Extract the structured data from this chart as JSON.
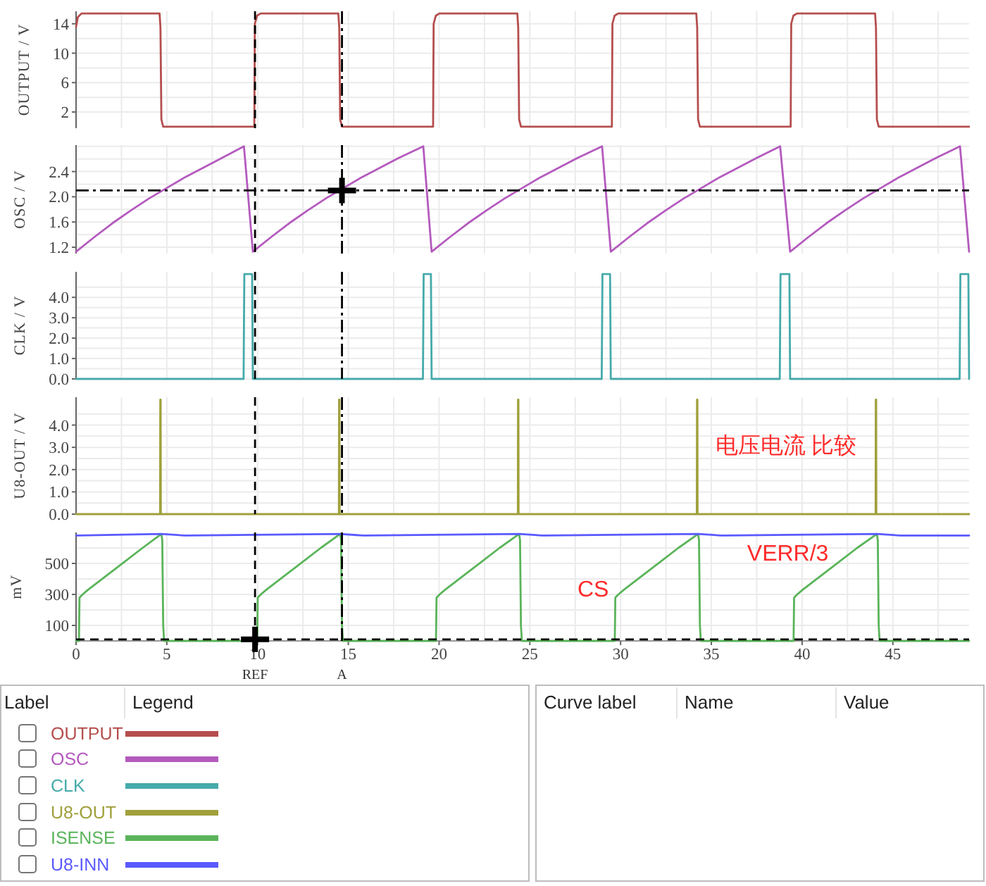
{
  "chart_data": [
    {
      "type": "line",
      "ylabel": "OUTPUT / V",
      "xlim": [
        0,
        49.2
      ],
      "xticks": [
        0,
        {
          "value": 2.5,
          "label": null
        },
        5,
        {
          "value": 7.5,
          "label": null
        },
        10,
        {
          "value": 12.5,
          "label": null
        },
        15,
        {
          "value": 17.5,
          "label": null
        },
        20,
        {
          "value": 22.5,
          "label": null
        },
        25,
        {
          "value": 27.5,
          "label": null
        },
        30,
        {
          "value": 32.5,
          "label": null
        },
        35,
        {
          "value": 37.5,
          "label": null
        },
        40,
        {
          "value": 42.5,
          "label": null
        },
        45,
        {
          "value": 47.5,
          "label": null
        }
      ],
      "ylim": [
        -0.2,
        15.7
      ],
      "yticks": [
        2,
        {
          "value": 4,
          "label": null
        },
        6,
        {
          "value": 8,
          "label": null
        },
        10,
        {
          "value": 12,
          "label": null
        },
        14
      ],
      "grid": true,
      "tick_labels": "y",
      "legend": "bottom",
      "series": [
        {
          "name": "OUTPUT",
          "color": "#b54e4e",
          "x": [
            0,
            0.1,
            0.3,
            4.6,
            4.65,
            4.7,
            4.8,
            9.82,
            9.85,
            9.97,
            10.17,
            14.45,
            14.5,
            14.55,
            14.65,
            19.67,
            19.7,
            19.82,
            20.02,
            24.31,
            24.36,
            24.41,
            24.51,
            29.52,
            29.55,
            29.67,
            29.87,
            34.17,
            34.22,
            34.27,
            34.37,
            39.37,
            39.4,
            39.52,
            39.72,
            44.02,
            44.07,
            44.12,
            44.22,
            49.2
          ],
          "values": [
            13.6,
            14.9,
            15.4,
            15.4,
            13.5,
            1,
            0,
            0,
            14,
            15.1,
            15.4,
            15.4,
            13.5,
            1,
            0,
            0,
            14,
            15.1,
            15.4,
            15.4,
            13.5,
            1,
            0,
            0,
            14,
            15.1,
            15.4,
            15.4,
            13.5,
            1,
            0,
            0,
            14,
            15.1,
            15.4,
            15.4,
            13.5,
            1,
            0,
            0
          ]
        }
      ],
      "ref_lines": [
        {
          "axis": "x",
          "value": 9.86,
          "line_style": "dashed",
          "color": "#000000"
        },
        {
          "axis": "x",
          "value": 14.65,
          "line_style": "dashdot",
          "color": "#000000"
        }
      ]
    },
    {
      "type": "line",
      "ylabel": "OSC / V",
      "xlim": [
        0,
        49.2
      ],
      "xticks": [
        0,
        {
          "value": 2.5,
          "label": null
        },
        5,
        {
          "value": 7.5,
          "label": null
        },
        10,
        {
          "value": 12.5,
          "label": null
        },
        15,
        {
          "value": 17.5,
          "label": null
        },
        20,
        {
          "value": 22.5,
          "label": null
        },
        25,
        {
          "value": 27.5,
          "label": null
        },
        30,
        {
          "value": 32.5,
          "label": null
        },
        35,
        {
          "value": 37.5,
          "label": null
        },
        40,
        {
          "value": 42.5,
          "label": null
        },
        45,
        {
          "value": 47.5,
          "label": null
        }
      ],
      "ylim": [
        1.1,
        2.82
      ],
      "yticks": [
        1.2,
        {
          "value": 1.4,
          "label": null
        },
        1.6,
        {
          "value": 1.8,
          "label": null
        },
        {
          "value": 2,
          "label": "2.0"
        },
        {
          "value": 2.2,
          "label": null
        },
        2.4,
        {
          "value": 2.6,
          "label": null
        },
        {
          "value": 2.8,
          "label": null
        }
      ],
      "grid": true,
      "tick_labels": "y",
      "legend": "bottom",
      "series": [
        {
          "name": "OSC",
          "color": "#b45abe",
          "x": [
            0,
            1,
            2,
            3,
            4,
            5,
            6,
            7,
            8,
            9.25,
            9.74,
            10.74,
            11.74,
            12.74,
            13.74,
            14.74,
            15.74,
            16.74,
            17.74,
            19.13,
            19.59,
            20.59,
            21.59,
            22.59,
            23.59,
            24.59,
            25.59,
            26.59,
            27.59,
            28.98,
            29.46,
            30.46,
            31.46,
            32.46,
            33.46,
            34.46,
            35.46,
            36.46,
            37.46,
            38.79,
            39.34,
            40.34,
            41.34,
            42.34,
            43.34,
            44.34,
            45.34,
            46.34,
            47.34,
            48.7,
            49.2
          ],
          "values": [
            1.13,
            1.36,
            1.58,
            1.78,
            1.97,
            2.14,
            2.31,
            2.46,
            2.61,
            2.8,
            1.13,
            1.36,
            1.58,
            1.78,
            1.97,
            2.14,
            2.31,
            2.46,
            2.61,
            2.8,
            1.13,
            1.36,
            1.58,
            1.78,
            1.97,
            2.14,
            2.31,
            2.46,
            2.61,
            2.8,
            1.13,
            1.36,
            1.58,
            1.78,
            1.97,
            2.14,
            2.31,
            2.46,
            2.61,
            2.8,
            1.13,
            1.36,
            1.58,
            1.78,
            1.97,
            2.14,
            2.31,
            2.46,
            2.61,
            2.8,
            1.13
          ]
        }
      ],
      "ref_lines": [
        {
          "axis": "x",
          "value": 9.86,
          "line_style": "dashed",
          "color": "#000000"
        },
        {
          "axis": "x",
          "value": 14.65,
          "line_style": "dashdot",
          "color": "#000000"
        },
        {
          "axis": "y",
          "value": 2.1,
          "line_style": "dashdot",
          "color": "#000000"
        }
      ]
    },
    {
      "type": "line",
      "ylabel": "CLK / V",
      "xlim": [
        0,
        49.2
      ],
      "xticks": [
        0,
        {
          "value": 2.5,
          "label": null
        },
        5,
        {
          "value": 7.5,
          "label": null
        },
        10,
        {
          "value": 12.5,
          "label": null
        },
        15,
        {
          "value": 17.5,
          "label": null
        },
        20,
        {
          "value": 22.5,
          "label": null
        },
        25,
        {
          "value": 27.5,
          "label": null
        },
        30,
        {
          "value": 32.5,
          "label": null
        },
        35,
        {
          "value": 37.5,
          "label": null
        },
        40,
        {
          "value": 42.5,
          "label": null
        },
        45,
        {
          "value": 47.5,
          "label": null
        }
      ],
      "ylim": [
        0,
        5.25
      ],
      "yticks": [
        {
          "value": 0,
          "label": "0.0"
        },
        {
          "value": 0.5,
          "label": null
        },
        {
          "value": 1,
          "label": "1.0"
        },
        {
          "value": 1.5,
          "label": null
        },
        {
          "value": 2,
          "label": "2.0"
        },
        {
          "value": 2.5,
          "label": null
        },
        {
          "value": 3,
          "label": "3.0"
        },
        {
          "value": 3.5,
          "label": null
        },
        {
          "value": 4,
          "label": "4.0"
        },
        {
          "value": 4.5,
          "label": null
        }
      ],
      "grid": true,
      "tick_labels": "y",
      "legend": "bottom",
      "series": [
        {
          "name": "CLK",
          "color": "#46aaaa",
          "x": [
            0,
            9.23,
            9.27,
            9.7,
            9.74,
            19.11,
            19.15,
            19.55,
            19.59,
            28.96,
            29.0,
            29.42,
            29.46,
            38.77,
            38.81,
            39.3,
            39.34,
            48.68,
            48.72,
            49.16,
            49.2
          ],
          "values": [
            0,
            0,
            5.14,
            5.14,
            0,
            0,
            5.14,
            5.14,
            0,
            0,
            5.14,
            5.14,
            0,
            0,
            5.14,
            5.14,
            0,
            0,
            5.14,
            5.14,
            0
          ]
        }
      ],
      "ref_lines": [
        {
          "axis": "x",
          "value": 9.86,
          "line_style": "dashed",
          "color": "#000000"
        },
        {
          "axis": "x",
          "value": 14.65,
          "line_style": "dashdot",
          "color": "#000000"
        }
      ]
    },
    {
      "type": "line",
      "ylabel": "U8-OUT / V",
      "xlim": [
        0,
        49.2
      ],
      "xticks": [
        0,
        {
          "value": 2.5,
          "label": null
        },
        5,
        {
          "value": 7.5,
          "label": null
        },
        10,
        {
          "value": 12.5,
          "label": null
        },
        15,
        {
          "value": 17.5,
          "label": null
        },
        20,
        {
          "value": 22.5,
          "label": null
        },
        25,
        {
          "value": 27.5,
          "label": null
        },
        30,
        {
          "value": 32.5,
          "label": null
        },
        35,
        {
          "value": 37.5,
          "label": null
        },
        40,
        {
          "value": 42.5,
          "label": null
        },
        45,
        {
          "value": 47.5,
          "label": null
        }
      ],
      "ylim": [
        0,
        5.25
      ],
      "yticks": [
        {
          "value": 0,
          "label": "0.0"
        },
        {
          "value": 0.5,
          "label": null
        },
        {
          "value": 1,
          "label": "1.0"
        },
        {
          "value": 1.5,
          "label": null
        },
        {
          "value": 2,
          "label": "2.0"
        },
        {
          "value": 2.5,
          "label": null
        },
        {
          "value": 3,
          "label": "3.0"
        },
        {
          "value": 3.5,
          "label": null
        },
        {
          "value": 4,
          "label": "4.0"
        },
        {
          "value": 4.5,
          "label": null
        }
      ],
      "grid": true,
      "tick_labels": "y",
      "legend": "bottom",
      "series": [
        {
          "name": "U8-OUT",
          "color": "#a0a03c",
          "x": [
            0,
            4.63,
            4.64,
            4.66,
            4.67,
            14.48,
            14.49,
            14.51,
            14.52,
            24.34,
            24.35,
            24.37,
            24.38,
            34.2,
            34.21,
            34.23,
            34.24,
            44.05,
            44.06,
            44.08,
            44.09,
            49.2
          ],
          "values": [
            0,
            0,
            5.14,
            5.14,
            0,
            0,
            5.14,
            5.14,
            0,
            0,
            5.14,
            5.14,
            0,
            0,
            5.14,
            5.14,
            0,
            0,
            5.14,
            5.14,
            0,
            0
          ]
        }
      ],
      "ref_lines": [
        {
          "axis": "x",
          "value": 9.86,
          "line_style": "dashed",
          "color": "#000000"
        },
        {
          "axis": "x",
          "value": 14.65,
          "line_style": "dashdot",
          "color": "#000000"
        }
      ],
      "annotations": [
        "电压电流 比较"
      ]
    },
    {
      "type": "line",
      "ylabel": "mV",
      "xlim": [
        0,
        49.2
      ],
      "xticks": [
        0,
        {
          "value": 2.5,
          "label": null
        },
        5,
        {
          "value": 7.5,
          "label": null
        },
        10,
        {
          "value": 12.5,
          "label": null
        },
        15,
        {
          "value": 17.5,
          "label": null
        },
        20,
        {
          "value": 22.5,
          "label": null
        },
        25,
        {
          "value": 27.5,
          "label": null
        },
        30,
        {
          "value": 32.5,
          "label": null
        },
        35,
        {
          "value": 37.5,
          "label": null
        },
        40,
        {
          "value": 42.5,
          "label": null
        },
        45,
        {
          "value": 47.5,
          "label": null
        }
      ],
      "ylim": [
        0,
        700
      ],
      "yticks": [
        100,
        {
          "value": 200,
          "label": null
        },
        300,
        {
          "value": 400,
          "label": null
        },
        500,
        {
          "value": 600,
          "label": null
        }
      ],
      "grid": true,
      "legend": "bottom",
      "series": [
        {
          "name": "ISENSE",
          "color": "#5ab45a",
          "x": [
            0,
            0.16,
            0.19,
            0.36,
            0.66,
            1.66,
            2.66,
            3.66,
            4.7,
            4.75,
            4.8,
            4.85,
            9.98,
            10.01,
            10.18,
            10.48,
            11.48,
            12.48,
            13.48,
            14.55,
            14.6,
            14.65,
            14.7,
            19.83,
            19.86,
            20.03,
            20.33,
            21.33,
            22.33,
            23.33,
            24.41,
            24.46,
            24.51,
            24.56,
            29.68,
            29.71,
            29.88,
            30.18,
            31.18,
            32.18,
            33.18,
            34.27,
            34.32,
            34.37,
            34.42,
            39.53,
            39.56,
            39.73,
            40.03,
            41.03,
            42.03,
            43.03,
            44.12,
            44.17,
            44.22,
            44.27,
            49.2
          ],
          "values": [
            0,
            0,
            280,
            300,
            330,
            420,
            510,
            600,
            690,
            650,
            100,
            0,
            0,
            280,
            300,
            330,
            420,
            510,
            600,
            690,
            650,
            100,
            0,
            0,
            280,
            300,
            330,
            420,
            510,
            600,
            690,
            650,
            100,
            0,
            0,
            280,
            300,
            330,
            420,
            510,
            600,
            690,
            650,
            100,
            0,
            0,
            280,
            300,
            330,
            420,
            510,
            600,
            690,
            650,
            100,
            0,
            0
          ]
        },
        {
          "name": "U8-INN",
          "color": "#5a5aff",
          "x": [
            0,
            4.7,
            6.0,
            14.55,
            15.85,
            24.41,
            25.71,
            34.27,
            35.57,
            44.12,
            45.42,
            49.2
          ],
          "values": [
            680,
            690,
            680,
            690,
            680,
            690,
            680,
            690,
            680,
            690,
            680,
            680
          ]
        }
      ],
      "ref_lines": [
        {
          "axis": "x",
          "value": 9.86,
          "line_style": "dashed",
          "color": "#000000",
          "label": "REF"
        },
        {
          "axis": "x",
          "value": 14.65,
          "line_style": "dashdot",
          "color": "#000000",
          "label": "A"
        },
        {
          "axis": "y",
          "value": 10,
          "line_style": "dashed",
          "color": "#000000"
        }
      ],
      "annotations": [
        "CS",
        "VERR/3"
      ]
    },
    {
      "type": "other",
      "annotations": [
        "Label",
        "Legend"
      ]
    },
    {
      "type": "other",
      "annotations": [
        "Curve label",
        "Name",
        "Value"
      ]
    }
  ]
}
